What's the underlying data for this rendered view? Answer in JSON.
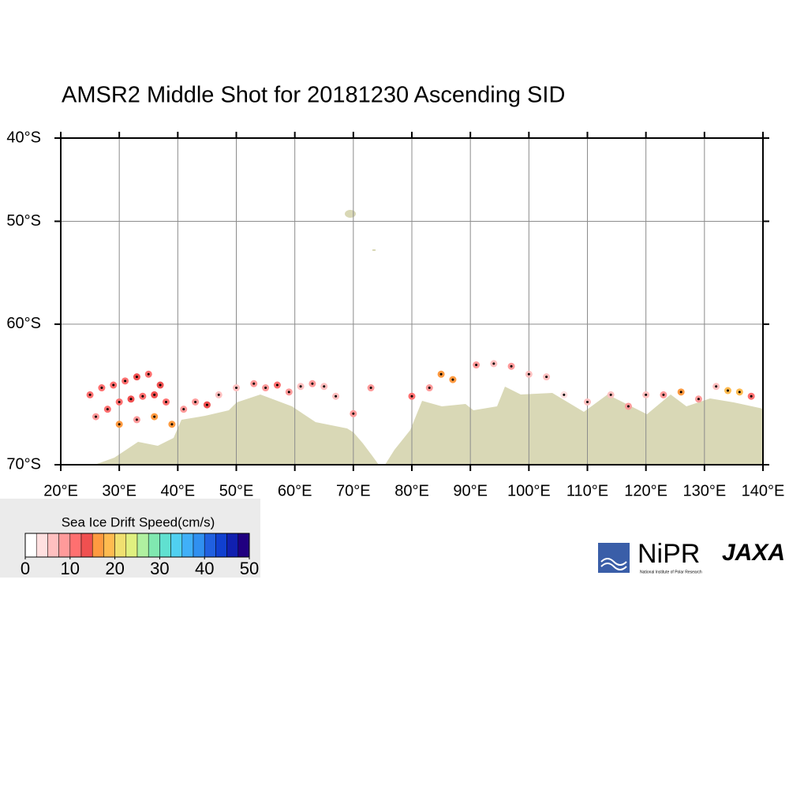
{
  "title": "AMSR2 Middle Shot for 20181230 Ascending SID",
  "map": {
    "projection": "mercator",
    "xlim": [
      20,
      140
    ],
    "ylim": [
      -70,
      -40
    ],
    "xticks": [
      {
        "value": 20,
        "label": "20°E"
      },
      {
        "value": 30,
        "label": "30°E"
      },
      {
        "value": 40,
        "label": "40°E"
      },
      {
        "value": 50,
        "label": "50°E"
      },
      {
        "value": 60,
        "label": "60°E"
      },
      {
        "value": 70,
        "label": "70°E"
      },
      {
        "value": 80,
        "label": "80°E"
      },
      {
        "value": 90,
        "label": "90°E"
      },
      {
        "value": 100,
        "label": "100°E"
      },
      {
        "value": 110,
        "label": "110°E"
      },
      {
        "value": 120,
        "label": "120°E"
      },
      {
        "value": 130,
        "label": "130°E"
      },
      {
        "value": 140,
        "label": "140°E"
      }
    ],
    "yticks": [
      {
        "value": -40,
        "label": "40°S"
      },
      {
        "value": -50,
        "label": "50°S"
      },
      {
        "value": -60,
        "label": "60°S"
      },
      {
        "value": -70,
        "label": "70°S"
      }
    ],
    "grid": true,
    "land_color": "#d9d8b6"
  },
  "drift": [
    [
      25,
      -65.5,
      10
    ],
    [
      27,
      -65,
      12
    ],
    [
      29,
      -64.8,
      11
    ],
    [
      31,
      -64.5,
      12
    ],
    [
      33,
      -64.2,
      13
    ],
    [
      35,
      -64,
      12
    ],
    [
      37,
      -64.8,
      14
    ],
    [
      26,
      -67,
      8
    ],
    [
      28,
      -66.5,
      10
    ],
    [
      30,
      -66,
      12
    ],
    [
      32,
      -65.8,
      14
    ],
    [
      34,
      -65.6,
      12
    ],
    [
      36,
      -65.5,
      13
    ],
    [
      38,
      -66,
      11
    ],
    [
      30,
      -67.5,
      17
    ],
    [
      33,
      -67.2,
      9
    ],
    [
      36,
      -67,
      15
    ],
    [
      39,
      -67.5,
      16
    ],
    [
      41,
      -66.5,
      8
    ],
    [
      43,
      -66,
      9
    ],
    [
      45,
      -66.2,
      13
    ],
    [
      47,
      -65.5,
      6
    ],
    [
      50,
      -65,
      5
    ],
    [
      53,
      -64.7,
      8
    ],
    [
      55,
      -65,
      9
    ],
    [
      57,
      -64.8,
      10
    ],
    [
      59,
      -65.3,
      9
    ],
    [
      61,
      -64.9,
      7
    ],
    [
      63,
      -64.7,
      8
    ],
    [
      65,
      -64.9,
      6
    ],
    [
      67,
      -65.6,
      5
    ],
    [
      70,
      -66.8,
      8
    ],
    [
      73,
      -65,
      9
    ],
    [
      80,
      -65.6,
      10
    ],
    [
      83,
      -65,
      8
    ],
    [
      85,
      -64,
      16
    ],
    [
      87,
      -64.4,
      15
    ],
    [
      91,
      -63.3,
      8
    ],
    [
      94,
      -63.2,
      7
    ],
    [
      97,
      -63.4,
      9
    ],
    [
      100,
      -64,
      5
    ],
    [
      103,
      -64.2,
      7
    ],
    [
      106,
      -65.5,
      4
    ],
    [
      110,
      -66,
      5
    ],
    [
      114,
      -65.5,
      6
    ],
    [
      117,
      -66.3,
      9
    ],
    [
      120,
      -65.5,
      6
    ],
    [
      123,
      -65.5,
      8
    ],
    [
      126,
      -65.3,
      16
    ],
    [
      129,
      -65.8,
      9
    ],
    [
      132,
      -64.9,
      5
    ],
    [
      134,
      -65.2,
      19
    ],
    [
      136,
      -65.3,
      18
    ],
    [
      138,
      -65.6,
      10
    ]
  ],
  "colorbar": {
    "label": "Sea Ice Drift Speed(cm/s)",
    "lim": [
      0,
      50
    ],
    "ticks": [
      0,
      10,
      20,
      30,
      40,
      50
    ],
    "colors": [
      "#ffffff",
      "#ffe0e0",
      "#ffc0c0",
      "#ff9a9a",
      "#ff7070",
      "#f05050",
      "#ff9a40",
      "#ffbb50",
      "#f0e070",
      "#e0f080",
      "#b0f0a0",
      "#80e8b0",
      "#60e0d0",
      "#50d0f0",
      "#40b0f8",
      "#3090f0",
      "#2060e0",
      "#1040d0",
      "#1020b0",
      "#200080"
    ]
  },
  "logos": {
    "nipr": "NiPR",
    "nipr_full": "National Institute of Polar Research",
    "jaxa": "JAXA"
  }
}
